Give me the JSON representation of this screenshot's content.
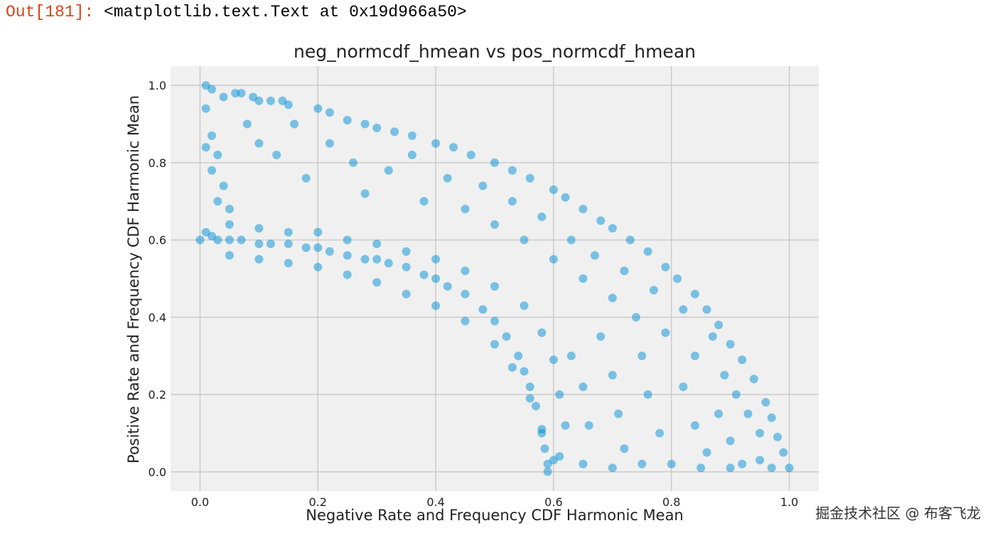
{
  "output": {
    "prompt": "Out[181]:",
    "text": "<matplotlib.text.Text at 0x19d966a50>"
  },
  "watermark": "掘金技术社区 @ 布客飞龙",
  "colors": {
    "marker": "#008fd5",
    "plot_background": "#f0f0f0",
    "grid": "#cbcbcb"
  },
  "chart_data": {
    "type": "scatter",
    "title": "neg_normcdf_hmean vs pos_normcdf_hmean",
    "xlabel": "Negative Rate and Frequency CDF Harmonic Mean",
    "ylabel": "Positive Rate and Frequency CDF Harmonic Mean",
    "xlim": [
      -0.05,
      1.05
    ],
    "ylim": [
      -0.05,
      1.05
    ],
    "xticks": [
      0.0,
      0.2,
      0.4,
      0.6,
      0.8,
      1.0
    ],
    "xtick_labels": [
      "0.0",
      "0.2",
      "0.4",
      "0.6",
      "0.8",
      "1.0"
    ],
    "yticks": [
      0.0,
      0.2,
      0.4,
      0.6,
      0.8,
      1.0
    ],
    "ytick_labels": [
      "0.0",
      "0.2",
      "0.4",
      "0.6",
      "0.8",
      "1.0"
    ],
    "grid": true,
    "marker_alpha": 0.5,
    "points": [
      [
        0.0,
        0.6
      ],
      [
        0.01,
        0.62
      ],
      [
        0.02,
        0.61
      ],
      [
        0.03,
        0.6
      ],
      [
        0.05,
        0.6
      ],
      [
        0.07,
        0.6
      ],
      [
        0.1,
        0.59
      ],
      [
        0.12,
        0.59
      ],
      [
        0.15,
        0.59
      ],
      [
        0.18,
        0.58
      ],
      [
        0.2,
        0.58
      ],
      [
        0.22,
        0.57
      ],
      [
        0.25,
        0.56
      ],
      [
        0.28,
        0.55
      ],
      [
        0.3,
        0.55
      ],
      [
        0.32,
        0.54
      ],
      [
        0.35,
        0.53
      ],
      [
        0.38,
        0.51
      ],
      [
        0.4,
        0.5
      ],
      [
        0.42,
        0.48
      ],
      [
        0.45,
        0.46
      ],
      [
        0.48,
        0.42
      ],
      [
        0.5,
        0.39
      ],
      [
        0.52,
        0.35
      ],
      [
        0.54,
        0.3
      ],
      [
        0.55,
        0.26
      ],
      [
        0.56,
        0.22
      ],
      [
        0.57,
        0.17
      ],
      [
        0.58,
        0.11
      ],
      [
        0.585,
        0.06
      ],
      [
        0.59,
        0.02
      ],
      [
        0.59,
        0.0
      ],
      [
        0.05,
        0.56
      ],
      [
        0.1,
        0.55
      ],
      [
        0.15,
        0.54
      ],
      [
        0.2,
        0.53
      ],
      [
        0.25,
        0.51
      ],
      [
        0.3,
        0.49
      ],
      [
        0.35,
        0.46
      ],
      [
        0.4,
        0.43
      ],
      [
        0.45,
        0.39
      ],
      [
        0.5,
        0.33
      ],
      [
        0.53,
        0.27
      ],
      [
        0.56,
        0.19
      ],
      [
        0.58,
        0.1
      ],
      [
        0.6,
        0.03
      ],
      [
        0.05,
        0.64
      ],
      [
        0.1,
        0.63
      ],
      [
        0.15,
        0.62
      ],
      [
        0.2,
        0.62
      ],
      [
        0.25,
        0.6
      ],
      [
        0.3,
        0.59
      ],
      [
        0.35,
        0.57
      ],
      [
        0.4,
        0.55
      ],
      [
        0.45,
        0.52
      ],
      [
        0.5,
        0.48
      ],
      [
        0.55,
        0.43
      ],
      [
        0.58,
        0.36
      ],
      [
        0.6,
        0.29
      ],
      [
        0.61,
        0.2
      ],
      [
        0.62,
        0.12
      ],
      [
        0.61,
        0.04
      ],
      [
        0.01,
        1.0
      ],
      [
        0.02,
        0.99
      ],
      [
        0.04,
        0.97
      ],
      [
        0.06,
        0.98
      ],
      [
        0.07,
        0.98
      ],
      [
        0.09,
        0.97
      ],
      [
        0.1,
        0.96
      ],
      [
        0.12,
        0.96
      ],
      [
        0.14,
        0.96
      ],
      [
        0.15,
        0.95
      ],
      [
        0.2,
        0.94
      ],
      [
        0.22,
        0.93
      ],
      [
        0.25,
        0.91
      ],
      [
        0.28,
        0.9
      ],
      [
        0.3,
        0.89
      ],
      [
        0.33,
        0.88
      ],
      [
        0.36,
        0.87
      ],
      [
        0.4,
        0.85
      ],
      [
        0.43,
        0.84
      ],
      [
        0.46,
        0.82
      ],
      [
        0.5,
        0.8
      ],
      [
        0.53,
        0.78
      ],
      [
        0.56,
        0.76
      ],
      [
        0.6,
        0.73
      ],
      [
        0.62,
        0.71
      ],
      [
        0.65,
        0.68
      ],
      [
        0.68,
        0.65
      ],
      [
        0.7,
        0.63
      ],
      [
        0.73,
        0.6
      ],
      [
        0.76,
        0.57
      ],
      [
        0.79,
        0.53
      ],
      [
        0.81,
        0.5
      ],
      [
        0.84,
        0.46
      ],
      [
        0.86,
        0.42
      ],
      [
        0.88,
        0.38
      ],
      [
        0.9,
        0.33
      ],
      [
        0.92,
        0.29
      ],
      [
        0.94,
        0.24
      ],
      [
        0.96,
        0.18
      ],
      [
        0.97,
        0.14
      ],
      [
        0.98,
        0.09
      ],
      [
        0.99,
        0.05
      ],
      [
        1.0,
        0.01
      ],
      [
        0.01,
        0.94
      ],
      [
        0.02,
        0.87
      ],
      [
        0.03,
        0.82
      ],
      [
        0.01,
        0.84
      ],
      [
        0.02,
        0.78
      ],
      [
        0.04,
        0.74
      ],
      [
        0.03,
        0.7
      ],
      [
        0.05,
        0.68
      ],
      [
        0.08,
        0.9
      ],
      [
        0.1,
        0.85
      ],
      [
        0.13,
        0.82
      ],
      [
        0.16,
        0.9
      ],
      [
        0.18,
        0.76
      ],
      [
        0.22,
        0.85
      ],
      [
        0.26,
        0.8
      ],
      [
        0.28,
        0.72
      ],
      [
        0.32,
        0.78
      ],
      [
        0.36,
        0.82
      ],
      [
        0.38,
        0.7
      ],
      [
        0.42,
        0.76
      ],
      [
        0.45,
        0.68
      ],
      [
        0.48,
        0.74
      ],
      [
        0.5,
        0.64
      ],
      [
        0.53,
        0.7
      ],
      [
        0.55,
        0.6
      ],
      [
        0.58,
        0.66
      ],
      [
        0.6,
        0.55
      ],
      [
        0.63,
        0.6
      ],
      [
        0.65,
        0.5
      ],
      [
        0.67,
        0.56
      ],
      [
        0.7,
        0.45
      ],
      [
        0.72,
        0.52
      ],
      [
        0.74,
        0.4
      ],
      [
        0.77,
        0.47
      ],
      [
        0.79,
        0.36
      ],
      [
        0.82,
        0.42
      ],
      [
        0.84,
        0.3
      ],
      [
        0.87,
        0.35
      ],
      [
        0.89,
        0.25
      ],
      [
        0.91,
        0.2
      ],
      [
        0.93,
        0.15
      ],
      [
        0.95,
        0.1
      ],
      [
        0.63,
        0.3
      ],
      [
        0.65,
        0.22
      ],
      [
        0.66,
        0.12
      ],
      [
        0.68,
        0.35
      ],
      [
        0.7,
        0.25
      ],
      [
        0.71,
        0.15
      ],
      [
        0.72,
        0.06
      ],
      [
        0.75,
        0.3
      ],
      [
        0.76,
        0.2
      ],
      [
        0.78,
        0.1
      ],
      [
        0.8,
        0.02
      ],
      [
        0.82,
        0.22
      ],
      [
        0.84,
        0.12
      ],
      [
        0.86,
        0.05
      ],
      [
        0.88,
        0.15
      ],
      [
        0.9,
        0.08
      ],
      [
        0.92,
        0.02
      ],
      [
        0.95,
        0.03
      ],
      [
        0.97,
        0.01
      ],
      [
        0.75,
        0.02
      ],
      [
        0.7,
        0.01
      ],
      [
        0.65,
        0.02
      ],
      [
        0.85,
        0.01
      ],
      [
        0.9,
        0.01
      ]
    ]
  }
}
